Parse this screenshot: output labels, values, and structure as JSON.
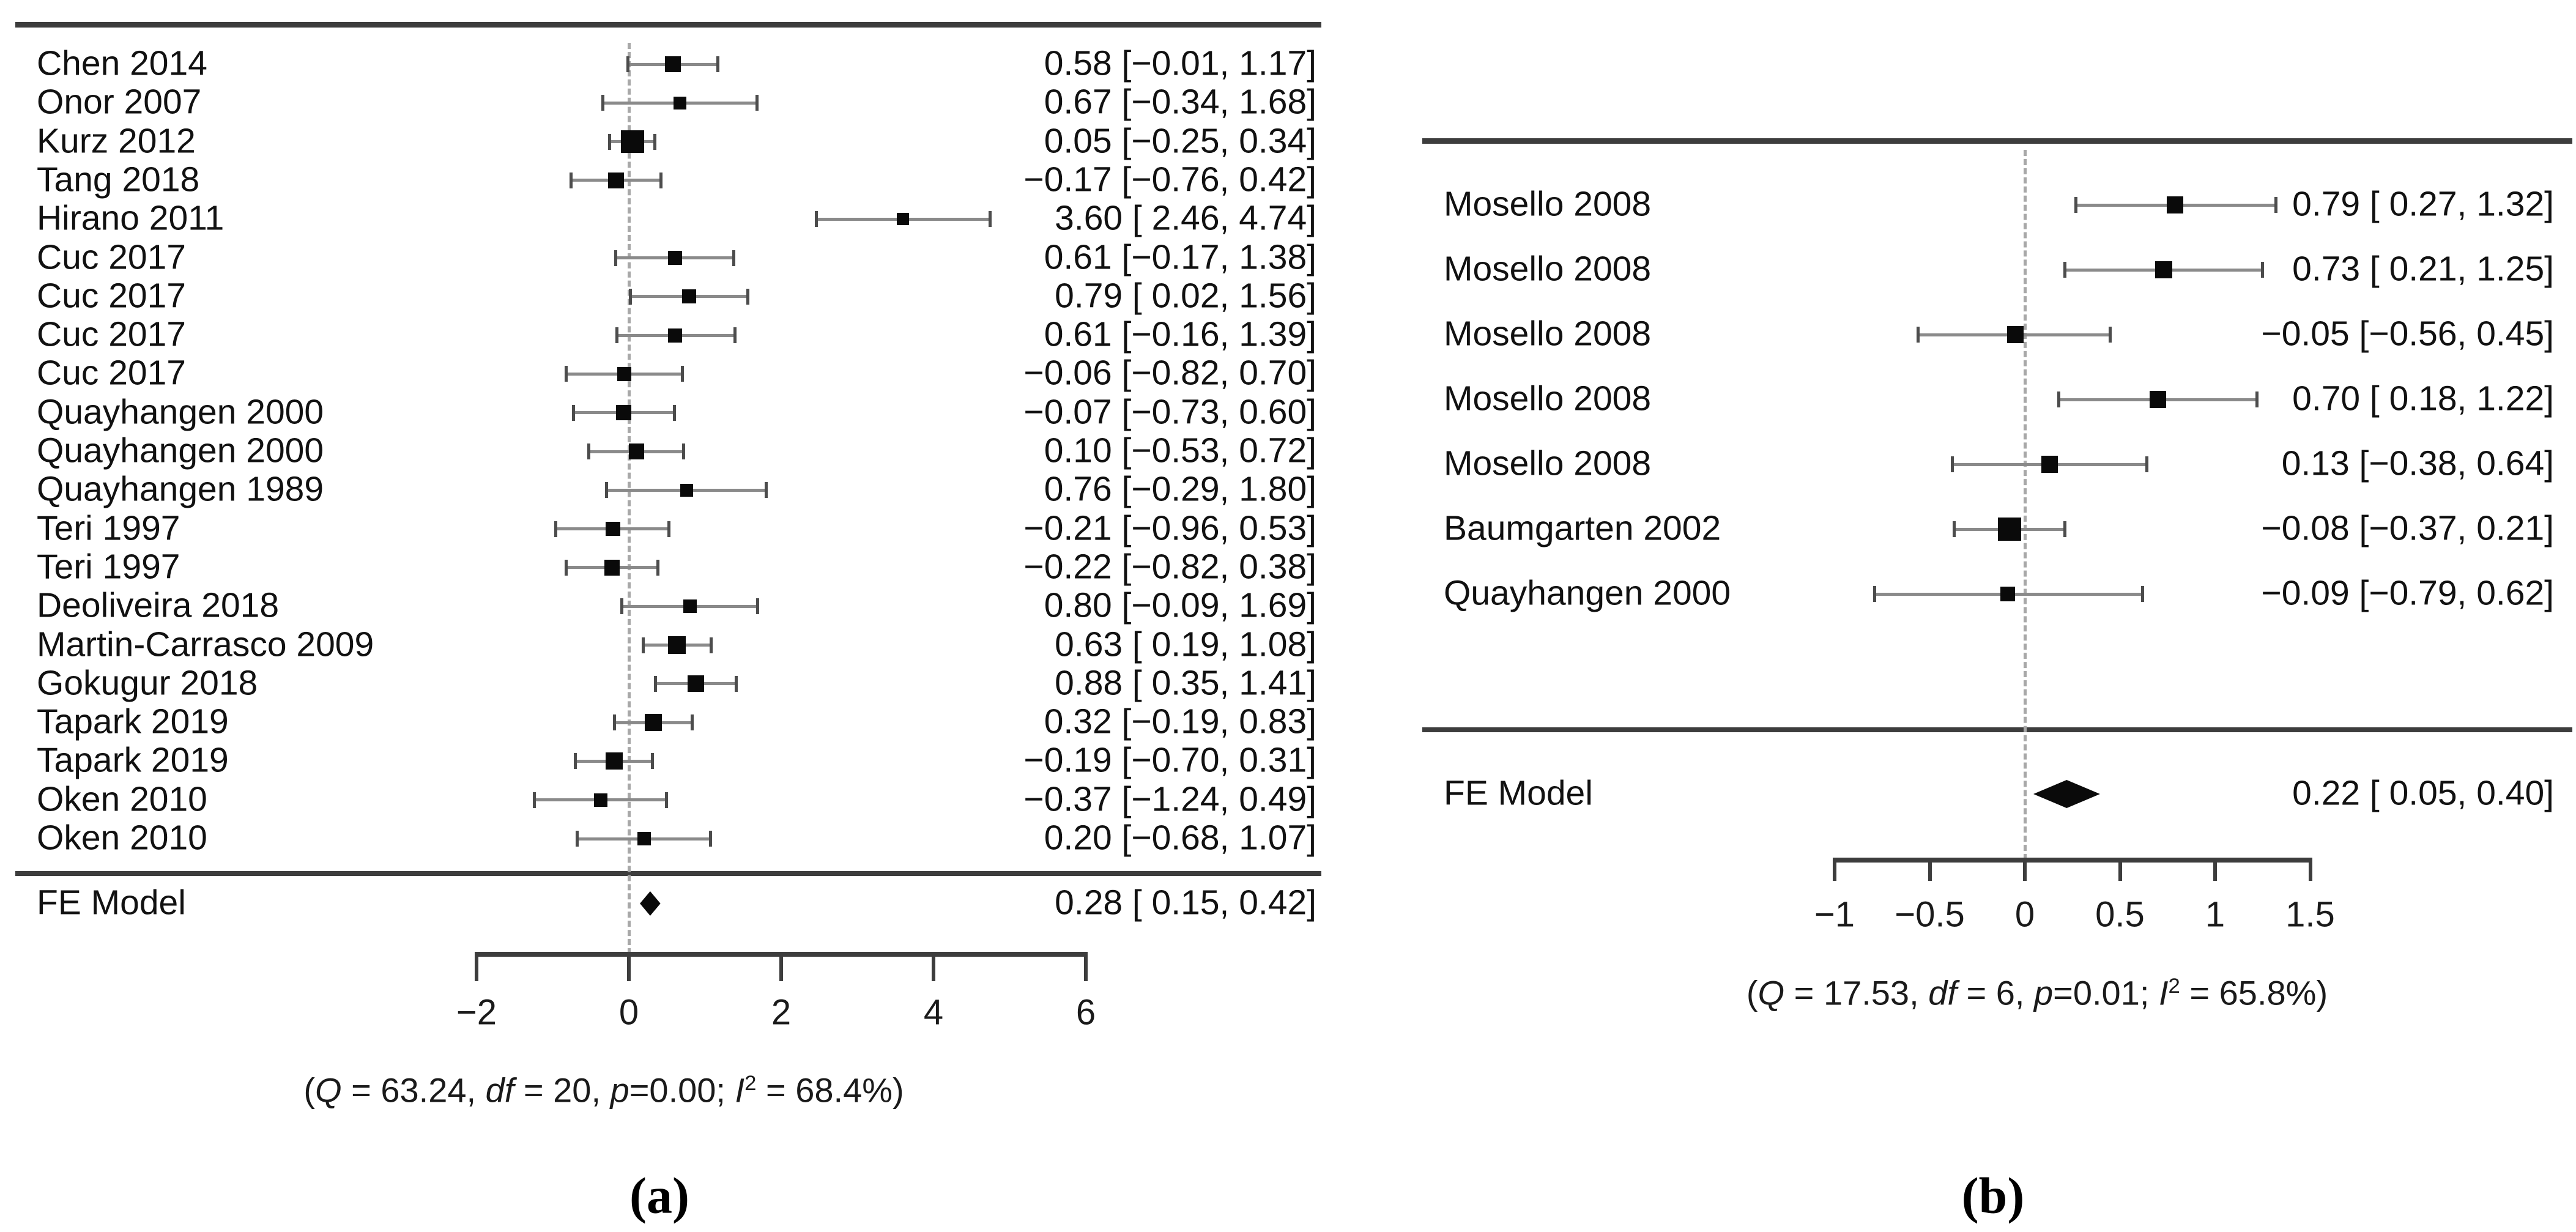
{
  "chart_data": [
    {
      "type": "forest",
      "caption": "(a)",
      "fe_label": "FE Model",
      "xlabel": "",
      "axis": {
        "range": [
          -2,
          6
        ],
        "ticks": [
          -2,
          0,
          2,
          4,
          6
        ],
        "labels": [
          "−2",
          "0",
          "2",
          "4",
          "6"
        ],
        "zero_reference_line": 0,
        "grid": "off"
      },
      "studies": [
        {
          "label": "Chen 2014",
          "est": 0.58,
          "lo": -0.01,
          "hi": 1.17,
          "text": "0.58 [−0.01, 1.17]"
        },
        {
          "label": "Onor 2007",
          "est": 0.67,
          "lo": -0.34,
          "hi": 1.68,
          "text": "0.67 [−0.34, 1.68]"
        },
        {
          "label": "Kurz 2012",
          "est": 0.05,
          "lo": -0.25,
          "hi": 0.34,
          "text": "0.05 [−0.25, 0.34]"
        },
        {
          "label": "Tang 2018",
          "est": -0.17,
          "lo": -0.76,
          "hi": 0.42,
          "text": "−0.17 [−0.76, 0.42]"
        },
        {
          "label": "Hirano 2011",
          "est": 3.6,
          "lo": 2.46,
          "hi": 4.74,
          "text": "3.60 [ 2.46, 4.74]"
        },
        {
          "label": "Cuc 2017",
          "est": 0.61,
          "lo": -0.17,
          "hi": 1.38,
          "text": "0.61 [−0.17, 1.38]"
        },
        {
          "label": "Cuc 2017",
          "est": 0.79,
          "lo": 0.02,
          "hi": 1.56,
          "text": "0.79 [ 0.02, 1.56]"
        },
        {
          "label": "Cuc 2017",
          "est": 0.61,
          "lo": -0.16,
          "hi": 1.39,
          "text": "0.61 [−0.16, 1.39]"
        },
        {
          "label": "Cuc 2017",
          "est": -0.06,
          "lo": -0.82,
          "hi": 0.7,
          "text": "−0.06 [−0.82, 0.70]"
        },
        {
          "label": "Quayhangen 2000",
          "est": -0.07,
          "lo": -0.73,
          "hi": 0.6,
          "text": "−0.07 [−0.73, 0.60]"
        },
        {
          "label": "Quayhangen 2000",
          "est": 0.1,
          "lo": -0.53,
          "hi": 0.72,
          "text": "0.10 [−0.53, 0.72]"
        },
        {
          "label": "Quayhangen 1989",
          "est": 0.76,
          "lo": -0.29,
          "hi": 1.8,
          "text": "0.76 [−0.29, 1.80]"
        },
        {
          "label": "Teri 1997",
          "est": -0.21,
          "lo": -0.96,
          "hi": 0.53,
          "text": "−0.21 [−0.96, 0.53]"
        },
        {
          "label": "Teri 1997",
          "est": -0.22,
          "lo": -0.82,
          "hi": 0.38,
          "text": "−0.22 [−0.82, 0.38]"
        },
        {
          "label": "Deoliveira 2018",
          "est": 0.8,
          "lo": -0.09,
          "hi": 1.69,
          "text": "0.80 [−0.09, 1.69]"
        },
        {
          "label": "Martin-Carrasco 2009",
          "est": 0.63,
          "lo": 0.19,
          "hi": 1.08,
          "text": "0.63 [ 0.19, 1.08]"
        },
        {
          "label": "Gokugur 2018",
          "est": 0.88,
          "lo": 0.35,
          "hi": 1.41,
          "text": "0.88 [ 0.35, 1.41]"
        },
        {
          "label": "Tapark 2019",
          "est": 0.32,
          "lo": -0.19,
          "hi": 0.83,
          "text": "0.32 [−0.19, 0.83]"
        },
        {
          "label": "Tapark 2019",
          "est": -0.19,
          "lo": -0.7,
          "hi": 0.31,
          "text": "−0.19 [−0.70, 0.31]"
        },
        {
          "label": "Oken 2010",
          "est": -0.37,
          "lo": -1.24,
          "hi": 0.49,
          "text": "−0.37 [−1.24, 0.49]"
        },
        {
          "label": "Oken 2010",
          "est": 0.2,
          "lo": -0.68,
          "hi": 1.07,
          "text": "0.20 [−0.68, 1.07]"
        }
      ],
      "fe": {
        "est": 0.28,
        "lo": 0.15,
        "hi": 0.42,
        "text": "0.28 [ 0.15, 0.42]"
      },
      "stats": [
        {
          "t": "(",
          "i": false
        },
        {
          "t": "Q",
          "i": true
        },
        {
          "t": " = 63.24, ",
          "i": false
        },
        {
          "t": "df",
          "i": true
        },
        {
          "t": " = 20, ",
          "i": false
        },
        {
          "t": "p",
          "i": true
        },
        {
          "t": "=0.00; ",
          "i": false
        },
        {
          "t": "I",
          "i": true
        },
        {
          "t": "2",
          "i": false,
          "sup": true
        },
        {
          "t": " = 68.4%)",
          "i": false
        }
      ]
    },
    {
      "type": "forest",
      "caption": "(b)",
      "fe_label": "FE Model",
      "xlabel": "",
      "axis": {
        "range": [
          -1,
          1.5
        ],
        "ticks": [
          -1,
          -0.5,
          0,
          0.5,
          1,
          1.5
        ],
        "labels": [
          "−1",
          "−0.5",
          "0",
          "0.5",
          "1",
          "1.5"
        ],
        "zero_reference_line": 0,
        "grid": "off"
      },
      "studies": [
        {
          "label": "Mosello 2008",
          "est": 0.79,
          "lo": 0.27,
          "hi": 1.32,
          "text": "0.79 [ 0.27, 1.32]"
        },
        {
          "label": "Mosello 2008",
          "est": 0.73,
          "lo": 0.21,
          "hi": 1.25,
          "text": "0.73 [ 0.21, 1.25]"
        },
        {
          "label": "Mosello 2008",
          "est": -0.05,
          "lo": -0.56,
          "hi": 0.45,
          "text": "−0.05 [−0.56, 0.45]"
        },
        {
          "label": "Mosello 2008",
          "est": 0.7,
          "lo": 0.18,
          "hi": 1.22,
          "text": "0.70 [ 0.18, 1.22]"
        },
        {
          "label": "Mosello 2008",
          "est": 0.13,
          "lo": -0.38,
          "hi": 0.64,
          "text": "0.13 [−0.38, 0.64]"
        },
        {
          "label": "Baumgarten 2002",
          "est": -0.08,
          "lo": -0.37,
          "hi": 0.21,
          "text": "−0.08 [−0.37, 0.21]"
        },
        {
          "label": "Quayhangen 2000",
          "est": -0.09,
          "lo": -0.79,
          "hi": 0.62,
          "text": "−0.09 [−0.79, 0.62]"
        }
      ],
      "fe": {
        "est": 0.22,
        "lo": 0.05,
        "hi": 0.4,
        "text": "0.22 [ 0.05, 0.40]"
      },
      "stats": [
        {
          "t": "(",
          "i": false
        },
        {
          "t": "Q",
          "i": true
        },
        {
          "t": " = 17.53, ",
          "i": false
        },
        {
          "t": "df",
          "i": true
        },
        {
          "t": " = 6, ",
          "i": false
        },
        {
          "t": "p",
          "i": true
        },
        {
          "t": "=0.01; ",
          "i": false
        },
        {
          "t": "I",
          "i": true
        },
        {
          "t": "2",
          "i": false,
          "sup": true
        },
        {
          "t": " = 65.8%)",
          "i": false
        }
      ]
    }
  ]
}
